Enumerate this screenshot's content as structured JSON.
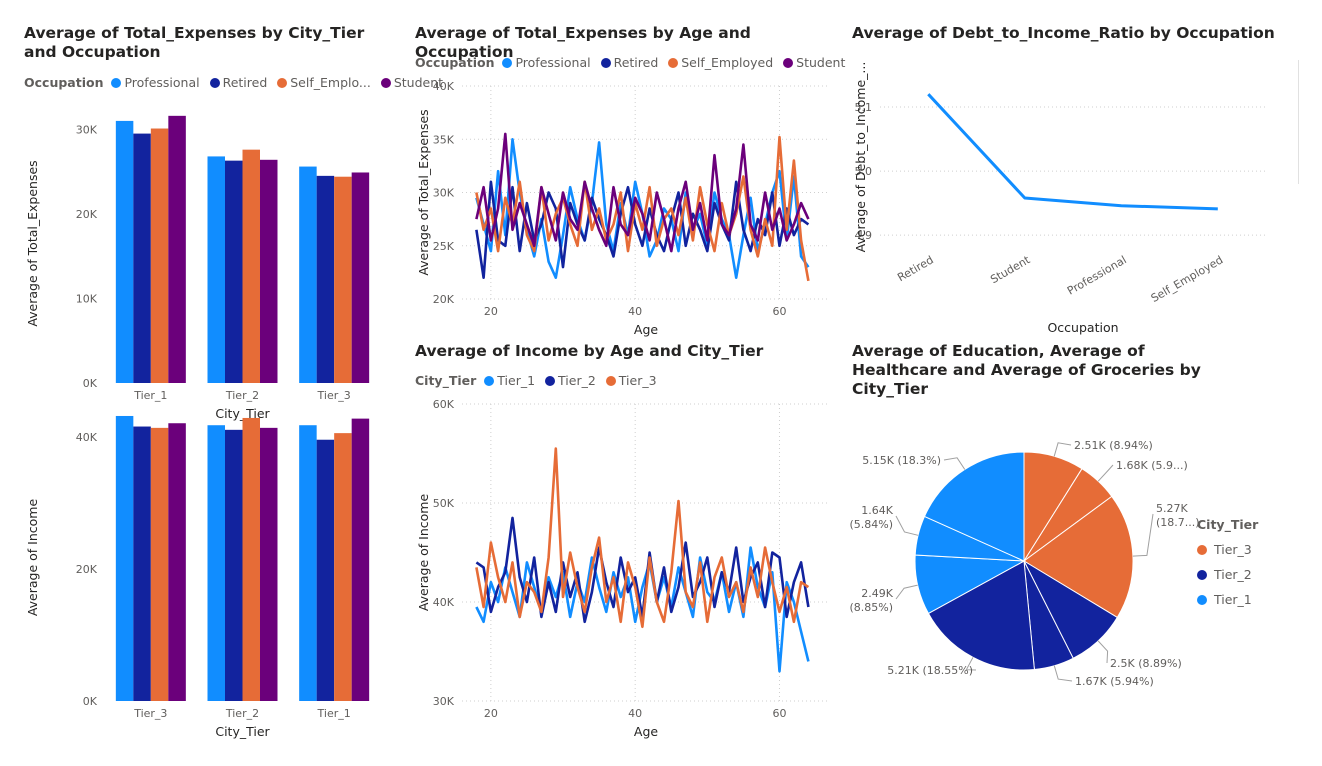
{
  "colors": {
    "Professional": "#118DFF",
    "Retired": "#12239E",
    "Self_Employed": "#E66C37",
    "Student": "#6B007B",
    "Tier_1": "#118DFF",
    "Tier_2": "#12239E",
    "Tier_3": "#E66C37"
  },
  "chart_data": [
    {
      "id": "c1",
      "type": "bar",
      "title": "Average of Total_Expenses by City_Tier and Occupation",
      "legend_title": "Occupation",
      "legend": [
        "Professional",
        "Retired",
        "Self_Emplo...",
        "Student"
      ],
      "xlabel": "City_Tier",
      "ylabel": "Average of Total_Expenses",
      "categories": [
        "Tier_1",
        "Tier_2",
        "Tier_3"
      ],
      "ylim": [
        0,
        33000
      ],
      "yticks": [
        0,
        10000,
        20000,
        30000
      ],
      "ytick_labels": [
        "0K",
        "10K",
        "20K",
        "30K"
      ],
      "series": [
        {
          "name": "Professional",
          "key": "Professional",
          "values": [
            31000,
            26800,
            25600
          ]
        },
        {
          "name": "Retired",
          "key": "Retired",
          "values": [
            29500,
            26300,
            24500
          ]
        },
        {
          "name": "Self_Emplo...",
          "key": "Self_Employed",
          "values": [
            30100,
            27600,
            24400
          ]
        },
        {
          "name": "Student",
          "key": "Student",
          "values": [
            31600,
            26400,
            24900
          ]
        }
      ]
    },
    {
      "id": "c2",
      "type": "bar",
      "title": "",
      "xlabel": "City_Tier",
      "ylabel": "Average of Income",
      "categories": [
        "Tier_3",
        "Tier_2",
        "Tier_1"
      ],
      "ylim": [
        0,
        43500
      ],
      "yticks": [
        0,
        20000,
        40000
      ],
      "ytick_labels": [
        "0K",
        "20K",
        "40K"
      ],
      "series": [
        {
          "key": "Professional",
          "values": [
            43200,
            41800,
            41800
          ]
        },
        {
          "key": "Retired",
          "values": [
            41600,
            41100,
            39600
          ]
        },
        {
          "key": "Self_Employed",
          "values": [
            41400,
            42900,
            40600
          ]
        },
        {
          "key": "Student",
          "values": [
            42100,
            41400,
            42800
          ]
        }
      ]
    },
    {
      "id": "c3",
      "type": "line",
      "title": "Average of Total_Expenses by Age and Occupation",
      "legend_title": "Occupation",
      "legend": [
        "Professional",
        "Retired",
        "Self_Employed",
        "Student"
      ],
      "xlabel": "Age",
      "ylabel": "Average of Total_Expenses",
      "x": [
        18,
        19,
        20,
        21,
        22,
        23,
        24,
        25,
        26,
        27,
        28,
        29,
        30,
        31,
        32,
        33,
        34,
        35,
        36,
        37,
        38,
        39,
        40,
        41,
        42,
        43,
        44,
        45,
        46,
        47,
        48,
        49,
        50,
        51,
        52,
        53,
        54,
        55,
        56,
        57,
        58,
        59,
        60,
        61,
        62,
        63,
        64
      ],
      "xlim": [
        16,
        67
      ],
      "xticks": [
        20,
        40,
        60
      ],
      "ylim": [
        20000,
        40000
      ],
      "yticks": [
        20000,
        25000,
        30000,
        35000,
        40000
      ],
      "ytick_labels": [
        "20K",
        "25K",
        "30K",
        "35K",
        "40K"
      ],
      "series": [
        {
          "name": "Professional",
          "key": "Professional",
          "values": [
            29500,
            27000,
            24500,
            32000,
            26000,
            35000,
            30000,
            26500,
            24000,
            27500,
            23500,
            22000,
            26000,
            30500,
            27500,
            25500,
            29000,
            34700,
            27000,
            24500,
            29000,
            26000,
            31000,
            28000,
            24000,
            25500,
            28500,
            27500,
            24500,
            30000,
            26500,
            28000,
            25000,
            30000,
            27500,
            26000,
            22000,
            26000,
            29500,
            24500,
            27000,
            30000,
            32000,
            25500,
            31500,
            24000,
            23000
          ]
        },
        {
          "name": "Retired",
          "key": "Retired",
          "values": [
            26500,
            22000,
            31000,
            25500,
            25000,
            30500,
            24500,
            29000,
            25500,
            27000,
            30000,
            28500,
            23000,
            29000,
            27000,
            25500,
            29500,
            27500,
            26000,
            24000,
            28000,
            30500,
            27000,
            25000,
            28500,
            26000,
            24500,
            27500,
            30000,
            25000,
            28000,
            26500,
            24500,
            29000,
            27000,
            25500,
            31000,
            26500,
            24500,
            27500,
            26000,
            30000,
            25000,
            28500,
            26000,
            27500,
            27000
          ]
        },
        {
          "name": "Self_Employed",
          "key": "Self_Employed",
          "values": [
            30000,
            26500,
            28500,
            24500,
            29500,
            27000,
            31000,
            26000,
            24500,
            30500,
            25500,
            28000,
            29500,
            27000,
            25000,
            31000,
            26500,
            28500,
            25500,
            27000,
            30000,
            24500,
            29000,
            26500,
            30500,
            25000,
            27500,
            28500,
            26000,
            29500,
            25500,
            30500,
            27000,
            24500,
            29000,
            26000,
            28000,
            31500,
            26500,
            24000,
            27500,
            25000,
            35200,
            26500,
            33000,
            25500,
            21700
          ]
        },
        {
          "name": "Student",
          "key": "Student",
          "values": [
            27500,
            30500,
            25500,
            28500,
            35500,
            26500,
            29000,
            27000,
            25000,
            30500,
            28000,
            25500,
            30000,
            27500,
            26500,
            31000,
            28500,
            26500,
            25000,
            30500,
            27000,
            26000,
            29500,
            28000,
            25500,
            30000,
            27500,
            24500,
            28500,
            31000,
            26500,
            29000,
            25500,
            33500,
            27000,
            26000,
            28500,
            34500,
            27000,
            25500,
            30000,
            26500,
            28500,
            25500,
            27000,
            29000,
            27500
          ]
        }
      ]
    },
    {
      "id": "c4",
      "type": "line",
      "title": "Average of Income by Age and City_Tier",
      "legend_title": "City_Tier",
      "legend": [
        "Tier_1",
        "Tier_2",
        "Tier_3"
      ],
      "xlabel": "Age",
      "ylabel": "Average of Income",
      "x": [
        18,
        19,
        20,
        21,
        22,
        23,
        24,
        25,
        26,
        27,
        28,
        29,
        30,
        31,
        32,
        33,
        34,
        35,
        36,
        37,
        38,
        39,
        40,
        41,
        42,
        43,
        44,
        45,
        46,
        47,
        48,
        49,
        50,
        51,
        52,
        53,
        54,
        55,
        56,
        57,
        58,
        59,
        60,
        61,
        62,
        63,
        64
      ],
      "xlim": [
        16,
        67
      ],
      "xticks": [
        20,
        40,
        60
      ],
      "ylim": [
        30000,
        60000
      ],
      "yticks": [
        30000,
        40000,
        50000,
        60000
      ],
      "ytick_labels": [
        "30K",
        "40K",
        "50K",
        "60K"
      ],
      "series": [
        {
          "name": "Tier_1",
          "key": "Tier_1",
          "values": [
            39500,
            38000,
            42000,
            40000,
            43500,
            41000,
            38500,
            44000,
            41500,
            39000,
            42500,
            40500,
            43000,
            38500,
            42000,
            40000,
            44500,
            41500,
            39000,
            43000,
            40500,
            42500,
            38000,
            41500,
            44000,
            40000,
            42500,
            39500,
            43500,
            41000,
            38500,
            44500,
            41000,
            40000,
            43000,
            39000,
            42000,
            38500,
            45500,
            41500,
            39500,
            43000,
            33000,
            42000,
            40000,
            37000,
            34000
          ]
        },
        {
          "name": "Tier_2",
          "key": "Tier_2",
          "values": [
            44000,
            43500,
            39000,
            41500,
            43000,
            48500,
            42500,
            40000,
            44500,
            38500,
            42000,
            39000,
            44000,
            40500,
            43000,
            38000,
            41000,
            45500,
            42000,
            39500,
            44500,
            41000,
            42500,
            38500,
            45000,
            40000,
            43500,
            39000,
            41500,
            46000,
            40500,
            42000,
            44500,
            39500,
            43000,
            41000,
            45500,
            40000,
            42500,
            44000,
            39500,
            45000,
            44500,
            38500,
            42000,
            44000,
            39500
          ]
        },
        {
          "name": "Tier_3",
          "key": "Tier_3",
          "values": [
            43500,
            39500,
            46000,
            42500,
            40000,
            44000,
            38500,
            42000,
            41000,
            39000,
            44500,
            55500,
            40500,
            45000,
            41500,
            39000,
            43500,
            46500,
            40000,
            42500,
            38000,
            44000,
            41500,
            37500,
            44500,
            40000,
            38000,
            43000,
            50200,
            41000,
            39500,
            44000,
            38000,
            42500,
            44500,
            40500,
            42000,
            39000,
            43500,
            40500,
            45500,
            42000,
            39000,
            41500,
            38000,
            42000,
            41500
          ]
        }
      ]
    },
    {
      "id": "c5",
      "type": "line",
      "title": "Average of Debt_to_Income_Ratio by Occupation",
      "xlabel": "Occupation",
      "ylabel": "Average of Debt_to_Income_...",
      "categories": [
        "Retired",
        "Student",
        "Professional",
        "Self_Employed"
      ],
      "values": [
        5.12,
        4.958,
        4.946,
        4.941
      ],
      "ylim": [
        4.88,
        5.15
      ],
      "yticks": [
        4.9,
        5.0,
        5.1
      ],
      "ytick_labels": [
        "4.9",
        "5.0",
        "5.1"
      ]
    },
    {
      "id": "c6",
      "type": "pie",
      "title": "Average of Education, Average of Healthcare and Average of Groceries by City_Tier",
      "legend_title": "City_Tier",
      "legend": [
        "Tier_3",
        "Tier_2",
        "Tier_1"
      ],
      "slices": [
        {
          "label": "2.51K (8.94%)",
          "value": 8.94,
          "key": "Tier_3"
        },
        {
          "label": "1.68K (5.9...)",
          "value": 5.97,
          "key": "Tier_3"
        },
        {
          "label": "5.27K (18.7...)",
          "value": 18.76,
          "key": "Tier_3"
        },
        {
          "label": "2.5K (8.89%)",
          "value": 8.89,
          "key": "Tier_2"
        },
        {
          "label": "1.67K (5.94%)",
          "value": 5.94,
          "key": "Tier_2"
        },
        {
          "label": "5.21K (18.55%)",
          "value": 18.55,
          "key": "Tier_2"
        },
        {
          "label": "2.49K (8.85%)",
          "value": 8.85,
          "key": "Tier_1"
        },
        {
          "label": "1.64K (5.84%)",
          "value": 5.84,
          "key": "Tier_1"
        },
        {
          "label": "5.15K (18.3%)",
          "value": 18.3,
          "key": "Tier_1"
        }
      ]
    }
  ]
}
